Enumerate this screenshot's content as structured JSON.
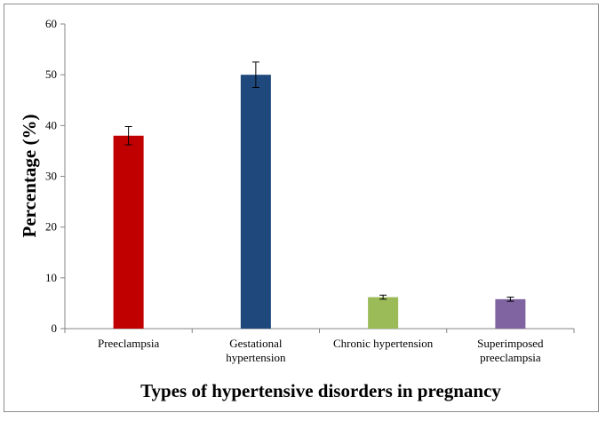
{
  "chart_data": {
    "type": "bar",
    "title": "",
    "xlabel": "Types of hypertensive  disorders  in pregnancy",
    "ylabel": "Percentage (%)",
    "ylim": [
      0,
      60
    ],
    "yticks": [
      0,
      10,
      20,
      30,
      40,
      50,
      60
    ],
    "grid": false,
    "legend": "none",
    "categories": [
      [
        "Preeclampsia"
      ],
      [
        "Gestational",
        "hypertension"
      ],
      [
        "Chronic hypertension"
      ],
      [
        "Superimposed",
        "preeclampsia"
      ]
    ],
    "values": [
      38,
      50,
      6.2,
      5.8
    ],
    "error": [
      1.8,
      2.5,
      0.4,
      0.4
    ],
    "colors": [
      "#c00000",
      "#1f497d",
      "#9bbb59",
      "#8064a2"
    ]
  }
}
